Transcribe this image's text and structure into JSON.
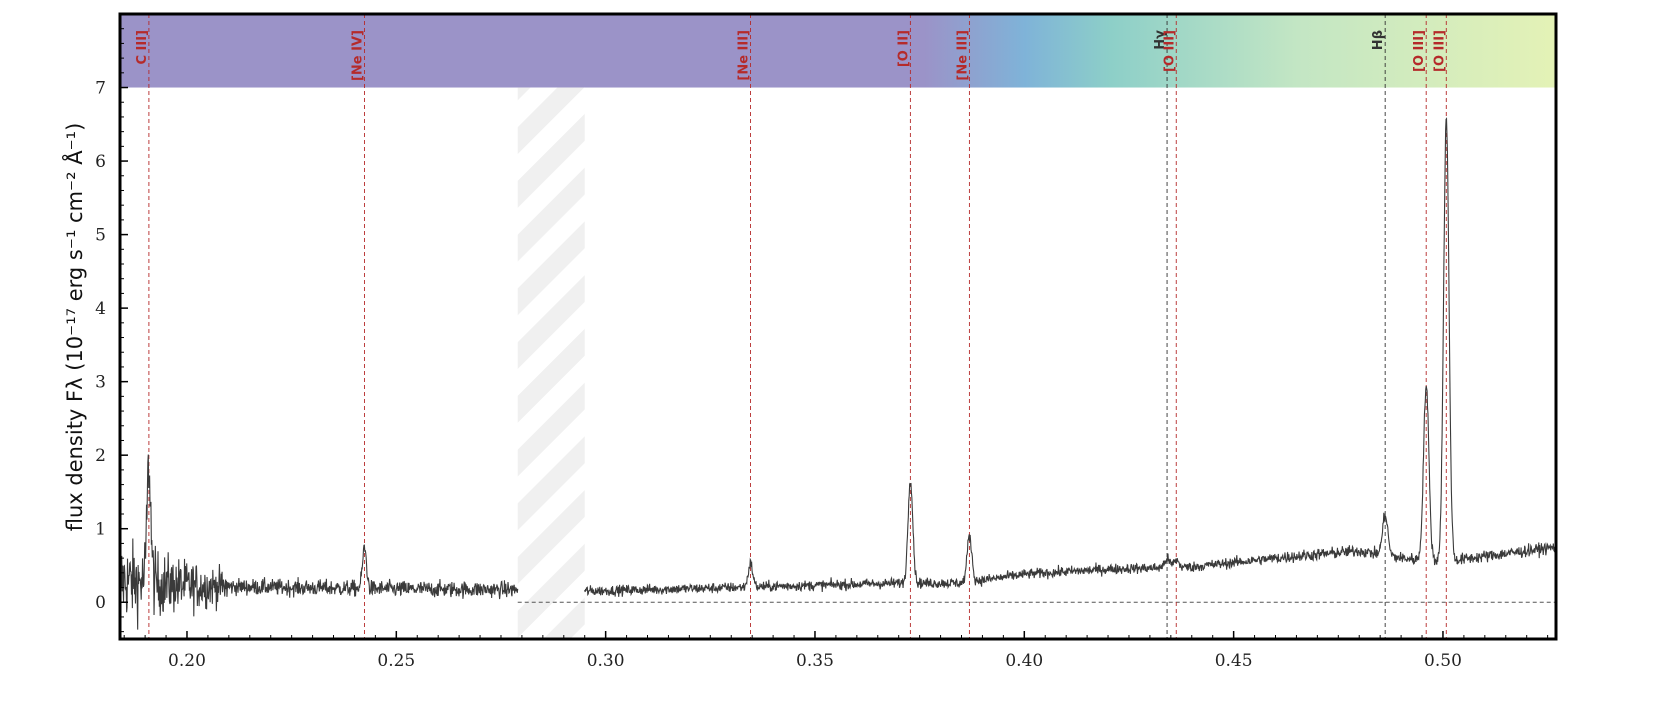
{
  "chart_data": {
    "type": "line",
    "title": "",
    "xlabel": "",
    "ylabel": "flux density Fλ (10⁻¹⁷ erg s⁻¹ cm⁻² Å⁻¹)",
    "xlim": [
      0.184,
      0.527
    ],
    "ylim": [
      -0.5,
      8.0
    ],
    "x_ticks": [
      "0.20",
      "0.25",
      "0.30",
      "0.35",
      "0.40",
      "0.45",
      "0.50"
    ],
    "y_ticks": [
      "0",
      "1",
      "2",
      "3",
      "4",
      "5",
      "6",
      "7"
    ],
    "grid": false,
    "zero_reference_line": true,
    "masked_region": [
      0.279,
      0.295
    ],
    "colorbar_band": {
      "y_range": [
        7.0,
        8.0
      ],
      "colors": [
        "#9b93c8",
        "#9b93c8",
        "#7fb3d8",
        "#8dcfc8",
        "#c3e6c4",
        "#e4f2b6"
      ]
    },
    "series": [
      {
        "color": "#3a3a3a",
        "continuum_points": [
          [
            0.184,
            0.3
          ],
          [
            0.2,
            0.22
          ],
          [
            0.25,
            0.18
          ],
          [
            0.279,
            0.17
          ],
          [
            0.295,
            0.15
          ],
          [
            0.33,
            0.2
          ],
          [
            0.37,
            0.26
          ],
          [
            0.385,
            0.26
          ],
          [
            0.4,
            0.38
          ],
          [
            0.42,
            0.45
          ],
          [
            0.44,
            0.48
          ],
          [
            0.46,
            0.6
          ],
          [
            0.48,
            0.7
          ],
          [
            0.49,
            0.6
          ],
          [
            0.5,
            0.55
          ],
          [
            0.527,
            0.75
          ]
        ],
        "emission_peaks": [
          {
            "x": 0.1909,
            "height": 1.6
          },
          {
            "x": 0.2424,
            "height": 0.55
          },
          {
            "x": 0.3346,
            "height": 0.32
          },
          {
            "x": 0.3728,
            "height": 1.42
          },
          {
            "x": 0.3869,
            "height": 0.62
          },
          {
            "x": 0.4341,
            "height": 0.12
          },
          {
            "x": 0.4363,
            "height": 0.1
          },
          {
            "x": 0.4862,
            "height": 0.55
          },
          {
            "x": 0.496,
            "height": 2.38
          },
          {
            "x": 0.5008,
            "height": 6.02
          }
        ]
      }
    ],
    "line_markers": [
      {
        "label": "C III]",
        "x": 0.1909,
        "color": "#b52a2a"
      },
      {
        "label": "[Ne IV]",
        "x": 0.2424,
        "color": "#b52a2a"
      },
      {
        "label": "[Ne III]",
        "x": 0.3346,
        "color": "#b52a2a"
      },
      {
        "label": "[O II]",
        "x": 0.3728,
        "color": "#b52a2a"
      },
      {
        "label": "[Ne III]",
        "x": 0.3869,
        "color": "#b52a2a"
      },
      {
        "label": "Hγ",
        "x": 0.4341,
        "color": "#333333"
      },
      {
        "label": "[O III]",
        "x": 0.4363,
        "color": "#b52a2a"
      },
      {
        "label": "Hβ",
        "x": 0.4862,
        "color": "#333333"
      },
      {
        "label": "[O III]",
        "x": 0.496,
        "color": "#b52a2a"
      },
      {
        "label": "[O III]",
        "x": 0.5008,
        "color": "#b52a2a"
      }
    ]
  }
}
